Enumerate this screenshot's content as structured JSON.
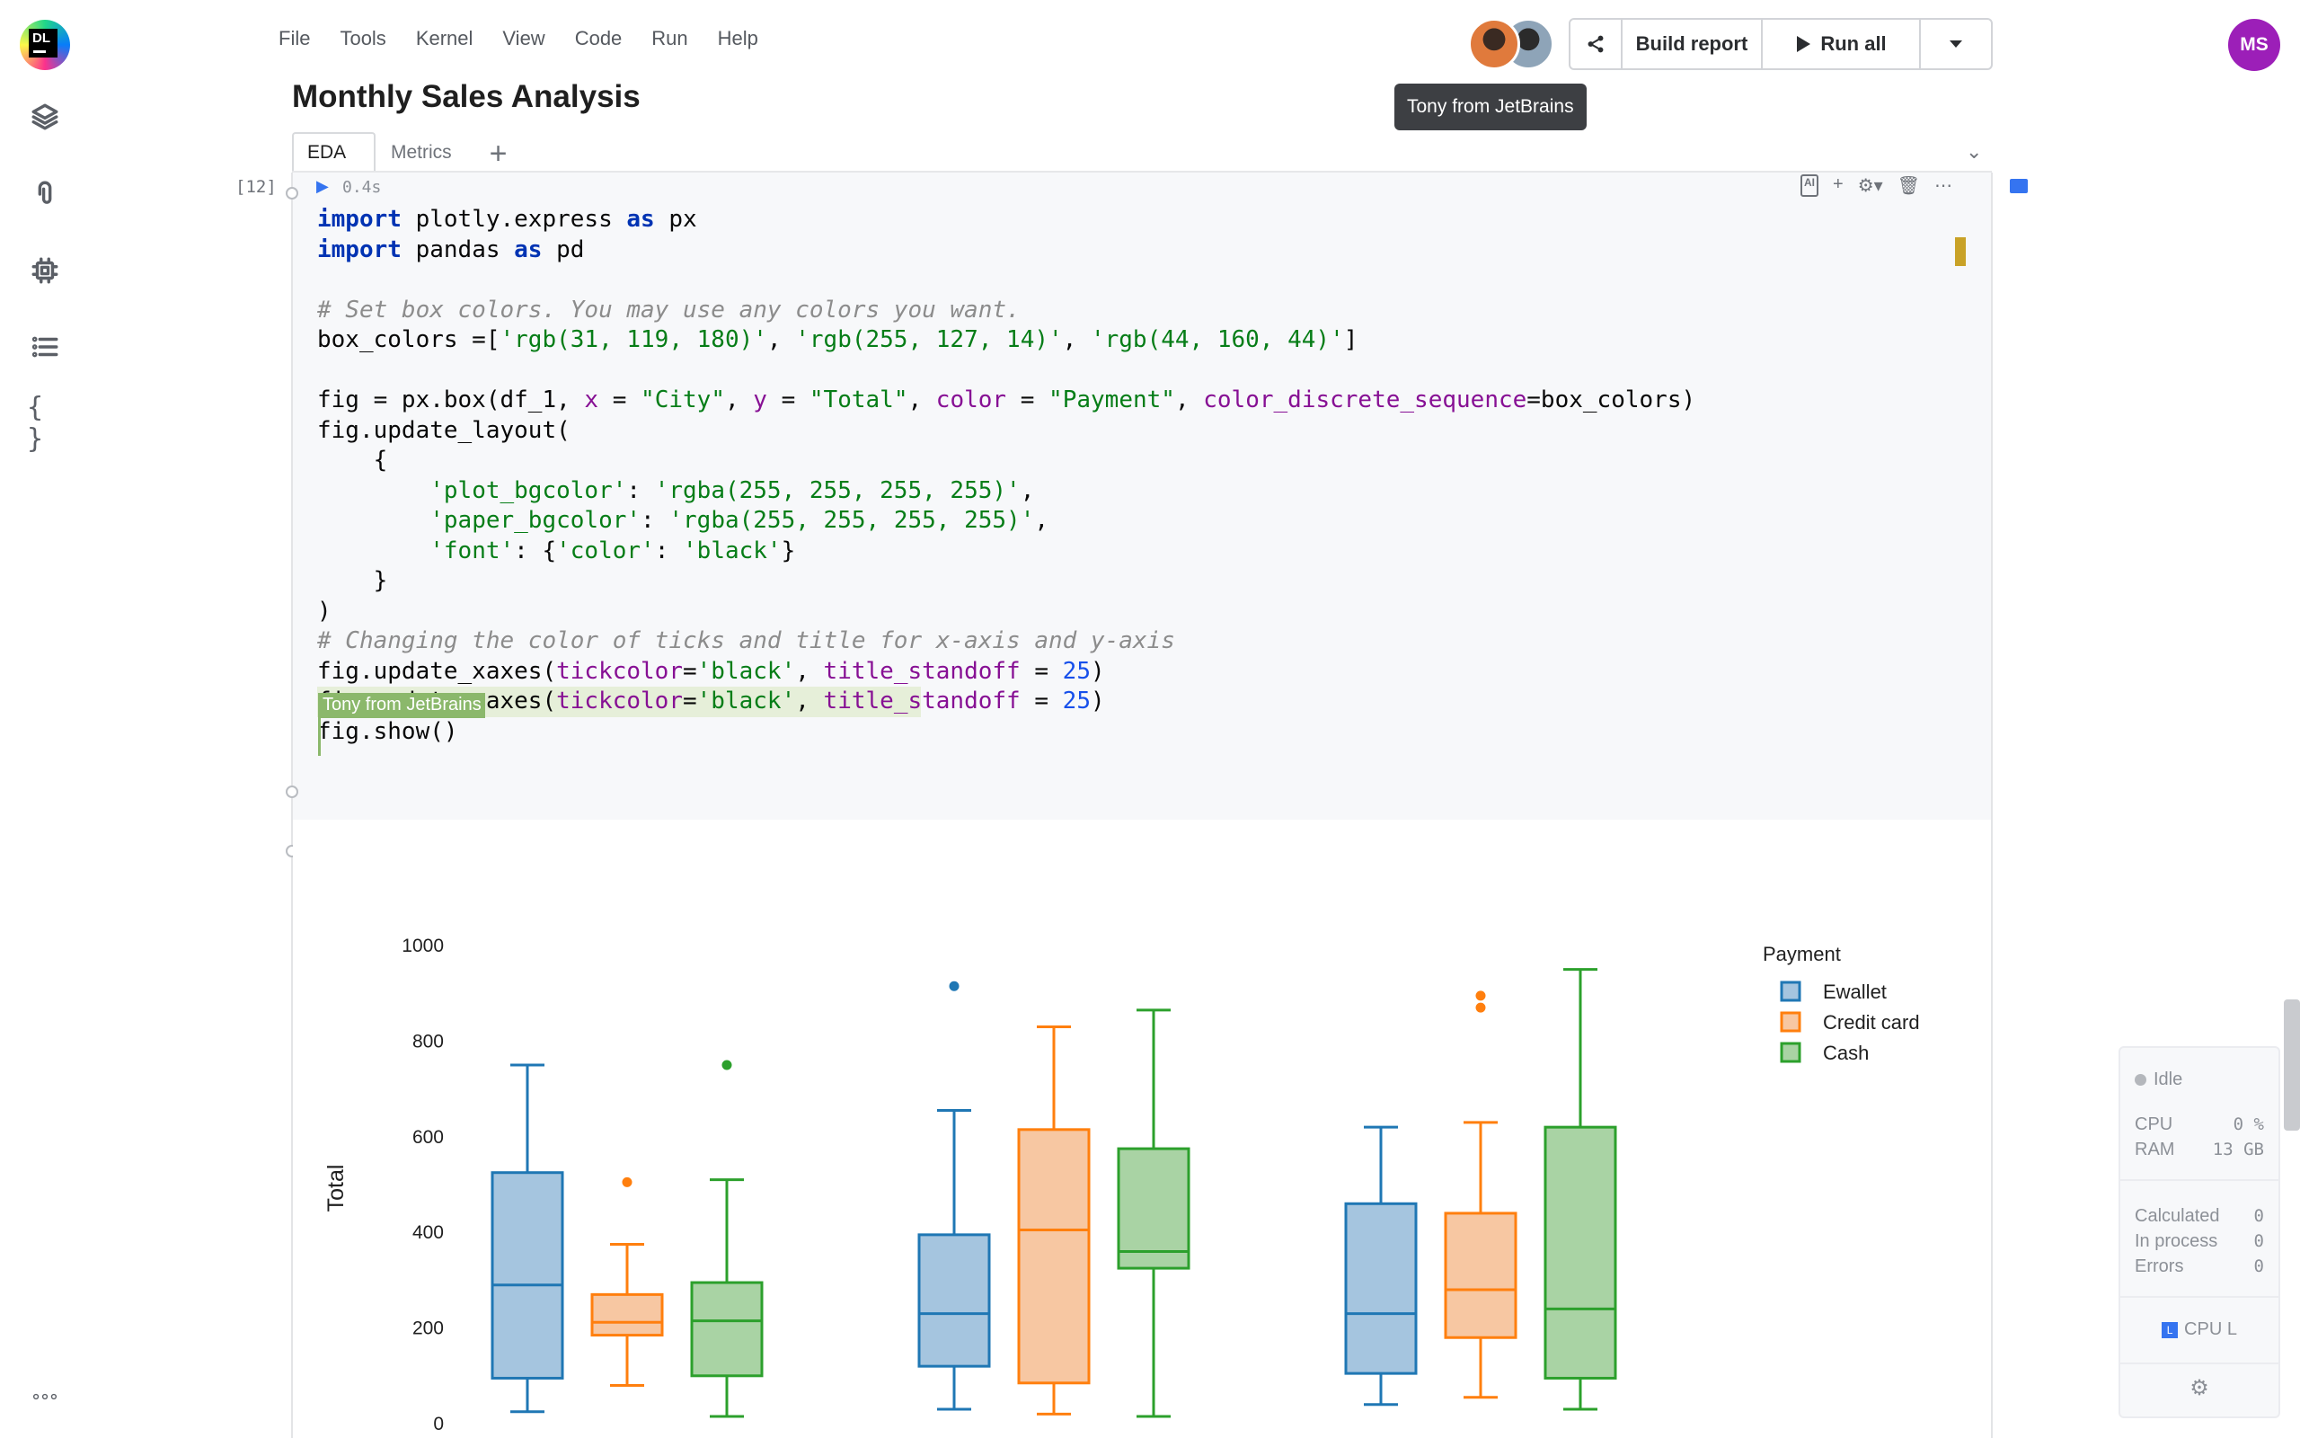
{
  "app": {
    "logo_text": "DL",
    "title": "Monthly Sales Analysis",
    "menu": [
      "File",
      "Tools",
      "Kernel",
      "View",
      "Code",
      "Run",
      "Help"
    ],
    "toolbar": {
      "build_report": "Build report",
      "run_all": "Run all"
    },
    "tooltip": "Tony from JetBrains",
    "user_initials": "MS"
  },
  "tabs": [
    {
      "label": "EDA",
      "active": true
    },
    {
      "label": "Metrics",
      "active": false
    }
  ],
  "sidebar_icons": [
    "layers-icon",
    "attachment-icon",
    "cpu-chip-icon",
    "list-icon",
    "braces-icon",
    "more-icon"
  ],
  "cell": {
    "exec_count": "[12]",
    "exec_time": "0.4s",
    "collaborator_label": "Tony from JetBrains",
    "code_lines": [
      [
        [
          "kw",
          "import"
        ],
        [
          "",
          " plotly.express "
        ],
        [
          "kw",
          "as"
        ],
        [
          "",
          " px"
        ]
      ],
      [
        [
          "kw",
          "import"
        ],
        [
          "",
          " pandas "
        ],
        [
          "kw",
          "as"
        ],
        [
          "",
          " pd"
        ]
      ],
      [],
      [
        [
          "cm",
          "# Set box colors. You may use any colors you want."
        ]
      ],
      [
        [
          "",
          "box_colors =["
        ],
        [
          "str",
          "'rgb(31, 119, 180)'"
        ],
        [
          "",
          ", "
        ],
        [
          "str",
          "'rgb(255, 127, 14)'"
        ],
        [
          "",
          ", "
        ],
        [
          "str",
          "'rgb(44, 160, 44)'"
        ],
        [
          "",
          "]"
        ]
      ],
      [],
      [
        [
          "",
          "fig = px.box(df_1, "
        ],
        [
          "param",
          "x"
        ],
        [
          "",
          " = "
        ],
        [
          "str",
          "\"City\""
        ],
        [
          "",
          ", "
        ],
        [
          "param",
          "y"
        ],
        [
          "",
          " = "
        ],
        [
          "str",
          "\"Total\""
        ],
        [
          "",
          ", "
        ],
        [
          "param",
          "color"
        ],
        [
          "",
          " = "
        ],
        [
          "str",
          "\"Payment\""
        ],
        [
          "",
          ", "
        ],
        [
          "param",
          "color_discrete_sequence"
        ],
        [
          "",
          "=box_colors)"
        ]
      ],
      [
        [
          "",
          "fig.update_layout("
        ]
      ],
      [
        [
          "",
          "    {"
        ]
      ],
      [
        [
          "",
          "        "
        ],
        [
          "str",
          "'plot_bgcolor'"
        ],
        [
          "",
          ": "
        ],
        [
          "str",
          "'rgba(255, 255, 255, 255)'"
        ],
        [
          "",
          ","
        ]
      ],
      [
        [
          "",
          "        "
        ],
        [
          "str",
          "'paper_bgcolor'"
        ],
        [
          "",
          ": "
        ],
        [
          "str",
          "'rgba(255, 255, 255, 255)'"
        ],
        [
          "",
          ","
        ]
      ],
      [
        [
          "",
          "        "
        ],
        [
          "str",
          "'font'"
        ],
        [
          "",
          ": {"
        ],
        [
          "str",
          "'color'"
        ],
        [
          "",
          ": "
        ],
        [
          "str",
          "'black'"
        ],
        [
          "",
          "}"
        ]
      ],
      [
        [
          "",
          "    }"
        ]
      ],
      [
        [
          "",
          ")"
        ]
      ],
      [
        [
          "cm",
          "# Changing the color of ticks and title for x-axis and y-axis"
        ]
      ],
      [
        [
          "",
          "fig.update_xaxes("
        ],
        [
          "param",
          "tickcolor"
        ],
        [
          "",
          "="
        ],
        [
          "str",
          "'black'"
        ],
        [
          "",
          ", "
        ],
        [
          "param",
          "title_standoff"
        ],
        [
          "",
          " = "
        ],
        [
          "num",
          "25"
        ],
        [
          "",
          ")"
        ]
      ],
      [
        [
          "",
          "fig.update_yaxes("
        ],
        [
          "param",
          "tickcolor"
        ],
        [
          "",
          "="
        ],
        [
          "str",
          "'black'"
        ],
        [
          "",
          ", "
        ],
        [
          "param",
          "title_standoff"
        ],
        [
          "",
          " = "
        ],
        [
          "num",
          "25"
        ],
        [
          "",
          ")"
        ]
      ],
      [
        [
          "",
          "fig.show()"
        ]
      ]
    ]
  },
  "status": {
    "state": "Idle",
    "cpu_label": "CPU",
    "cpu_value": "0 %",
    "ram_label": "RAM",
    "ram_value": "13 GB",
    "calculated_label": "Calculated",
    "calculated_value": "0",
    "in_process_label": "In process",
    "in_process_value": "0",
    "errors_label": "Errors",
    "errors_value": "0",
    "kernel_label": "CPU L",
    "kernel_badge": "L"
  },
  "chart_data": {
    "type": "box",
    "ylabel": "Total",
    "ylim": [
      0,
      1000
    ],
    "yticks": [
      0,
      200,
      400,
      600,
      800,
      1000
    ],
    "legend_title": "Payment",
    "legend_placement": "top-right",
    "groups": 3,
    "series": [
      {
        "name": "Ewallet",
        "color": "#1f77b4",
        "fill": "#a5c5df",
        "boxes": [
          {
            "min": 25,
            "q1": 95,
            "median": 290,
            "q3": 525,
            "max": 750,
            "outliers": []
          },
          {
            "min": 30,
            "q1": 120,
            "median": 230,
            "q3": 395,
            "max": 655,
            "outliers": [
              915
            ]
          },
          {
            "min": 40,
            "q1": 105,
            "median": 230,
            "q3": 460,
            "max": 620,
            "outliers": []
          }
        ]
      },
      {
        "name": "Credit card",
        "color": "#ff7f0e",
        "fill": "#f7c7a2",
        "boxes": [
          {
            "min": 80,
            "q1": 185,
            "median": 212,
            "q3": 270,
            "max": 375,
            "outliers": [
              505
            ]
          },
          {
            "min": 20,
            "q1": 85,
            "median": 405,
            "q3": 615,
            "max": 830,
            "outliers": []
          },
          {
            "min": 55,
            "q1": 180,
            "median": 280,
            "q3": 440,
            "max": 630,
            "outliers": [
              870,
              895
            ]
          }
        ]
      },
      {
        "name": "Cash",
        "color": "#2ca02c",
        "fill": "#a9d3a4",
        "boxes": [
          {
            "min": 15,
            "q1": 100,
            "median": 215,
            "q3": 295,
            "max": 510,
            "outliers": [
              750
            ]
          },
          {
            "min": 15,
            "q1": 325,
            "median": 360,
            "q3": 575,
            "max": 865,
            "outliers": []
          },
          {
            "min": 30,
            "q1": 95,
            "median": 240,
            "q3": 620,
            "max": 950,
            "outliers": []
          }
        ]
      }
    ]
  }
}
